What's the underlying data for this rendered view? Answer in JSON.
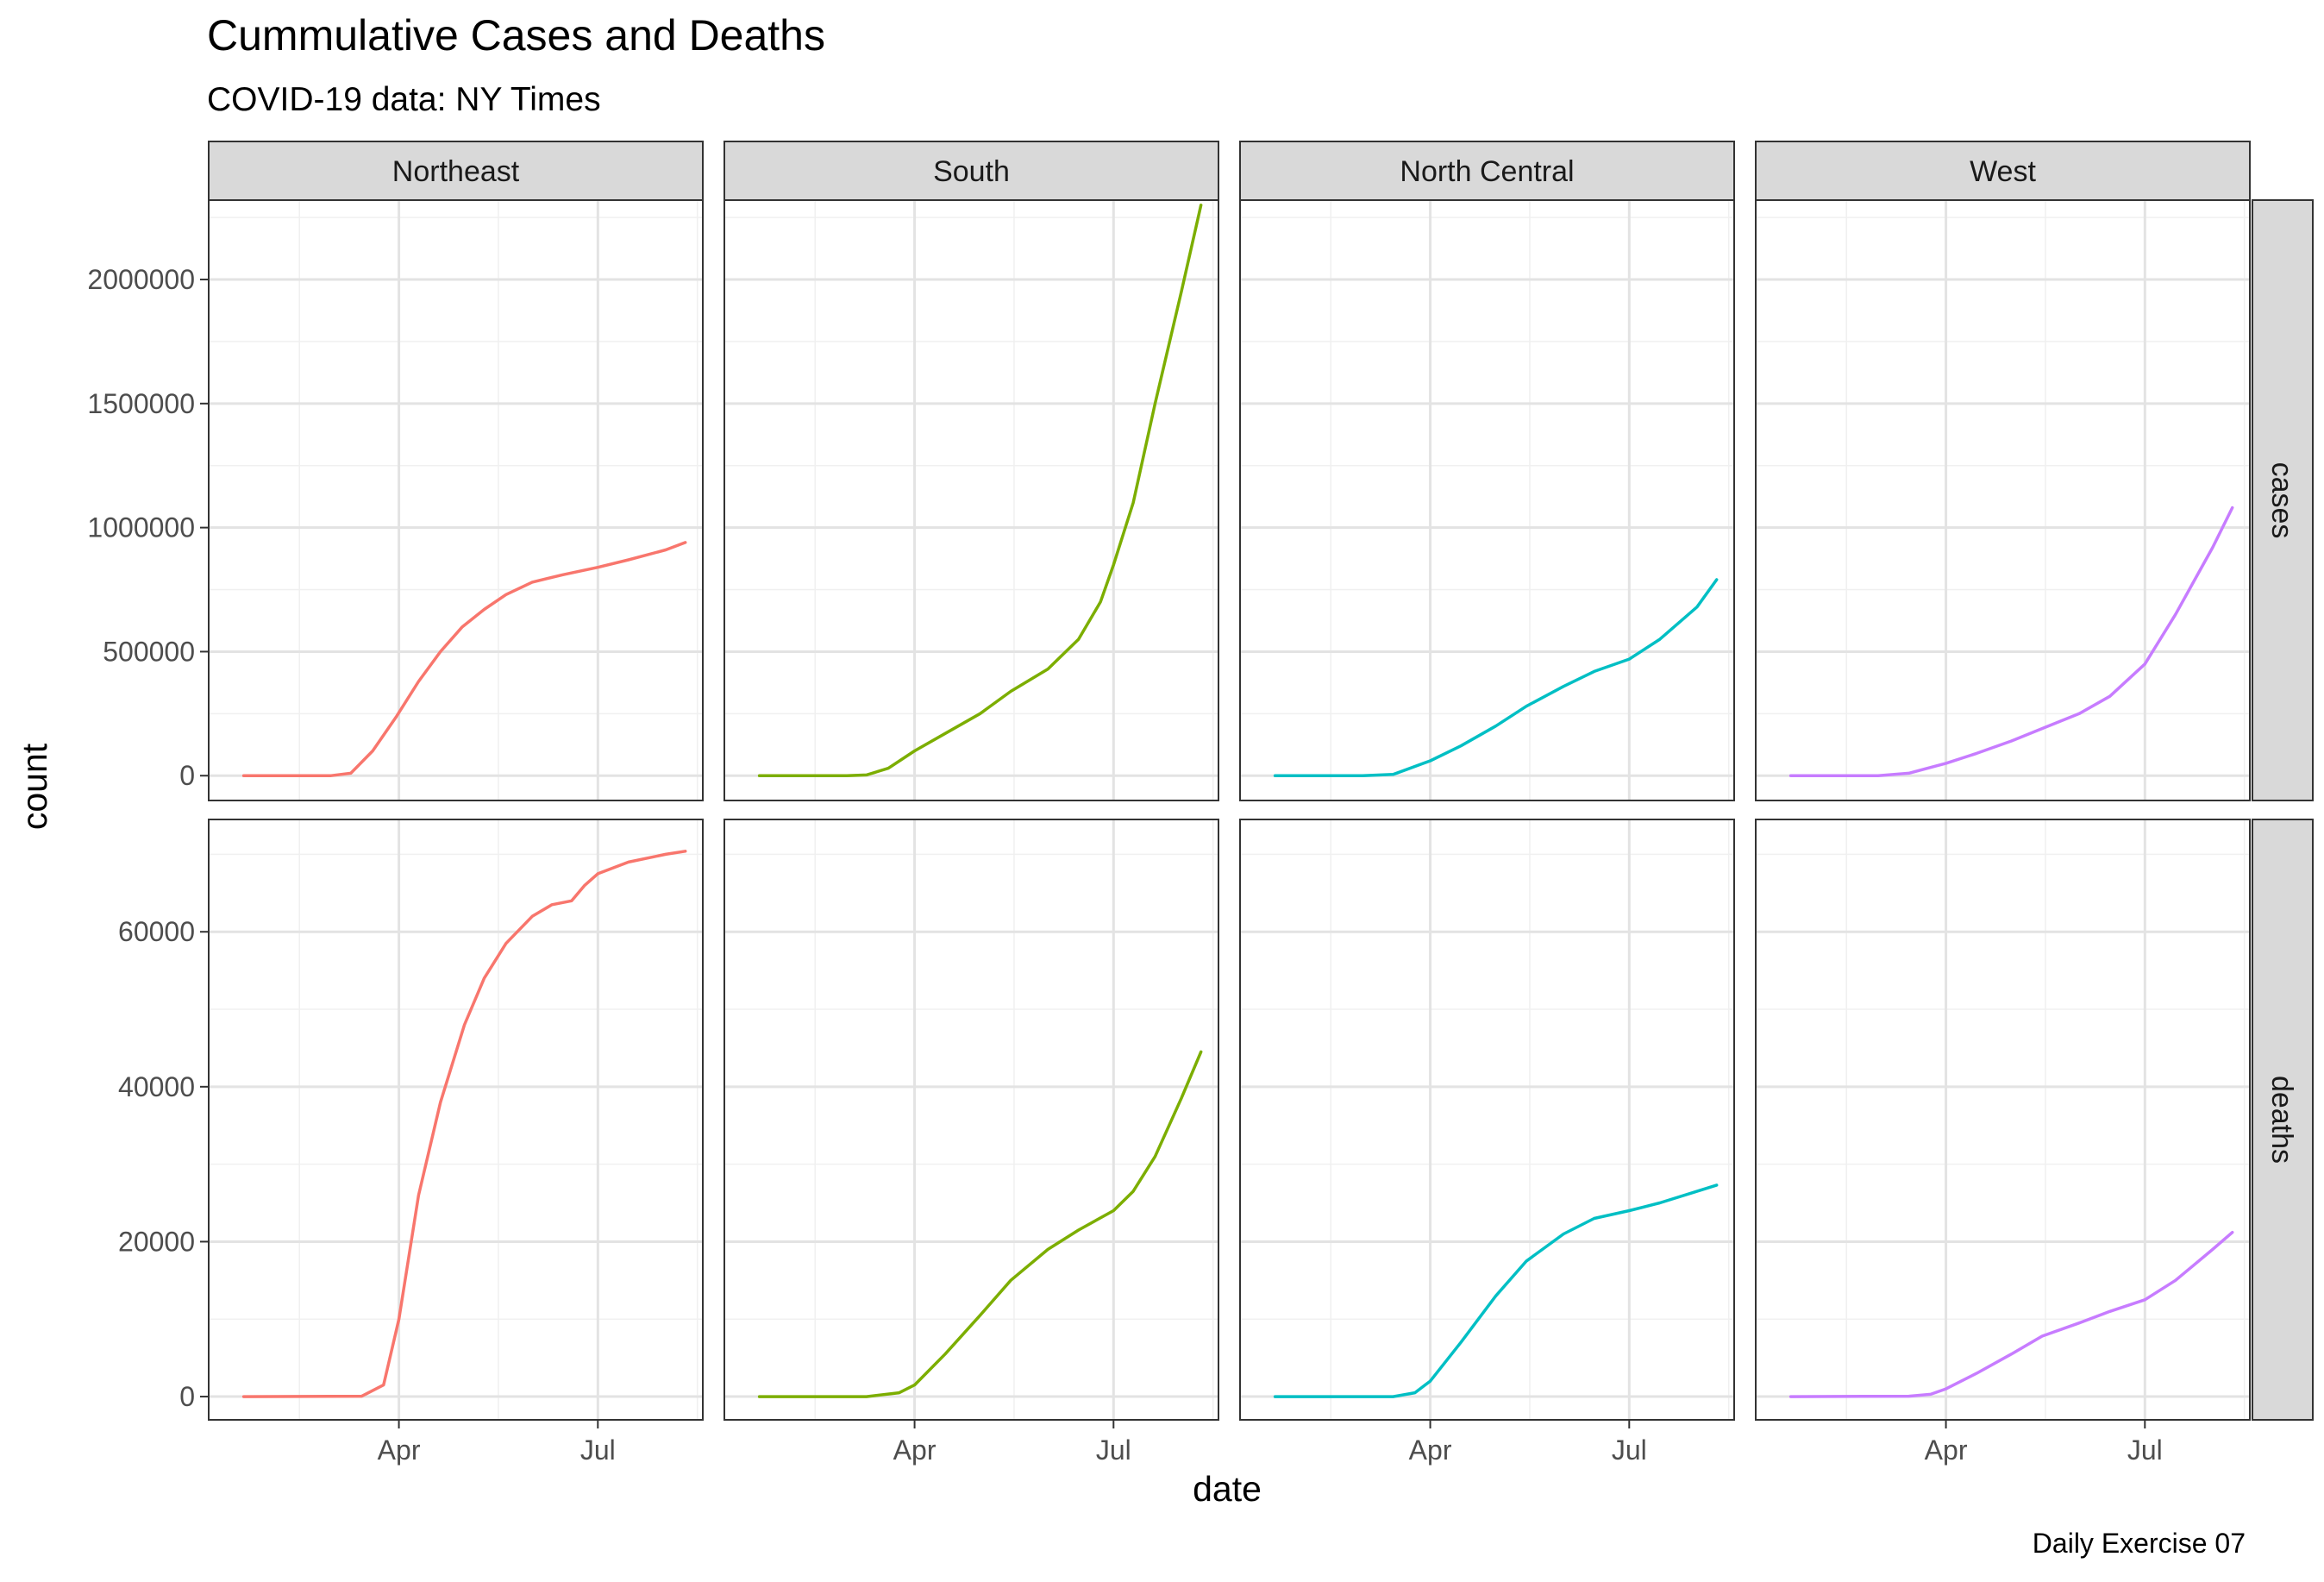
{
  "chart_data": {
    "type": "line",
    "title": "Cummulative Cases and Deaths",
    "subtitle": "COVID-19 data: NY Times",
    "caption": "Daily Exercise 07",
    "xlabel": "date",
    "ylabel": "count",
    "x_ticks": [
      "Apr",
      "Jul"
    ],
    "x_tick_dates": [
      "2020-04-01",
      "2020-07-01"
    ],
    "xlim": [
      "2020-01-05",
      "2020-08-18"
    ],
    "grid": true,
    "legend": "none",
    "facet_columns": [
      "Northeast",
      "South",
      "North Central",
      "West"
    ],
    "facet_rows": [
      {
        "label": "cases",
        "ylim": [
          -100000,
          2320000
        ],
        "y_ticks": [
          0,
          500000,
          1000000,
          1500000,
          2000000
        ],
        "y_tick_labels": [
          "0",
          "500000",
          "1000000",
          "1500000",
          "2000000"
        ]
      },
      {
        "label": "deaths",
        "ylim": [
          -3000,
          74500
        ],
        "y_ticks": [
          0,
          20000,
          40000,
          60000
        ],
        "y_tick_labels": [
          "0",
          "20000",
          "40000",
          "60000"
        ]
      }
    ],
    "colors": {
      "Northeast": "#F8766D",
      "South": "#7CAE00",
      "North Central": "#00BFC4",
      "West": "#C77CFF"
    },
    "series": [
      {
        "region": "Northeast",
        "measure": "cases",
        "x": [
          "2020-01-21",
          "2020-03-01",
          "2020-03-10",
          "2020-03-20",
          "2020-03-31",
          "2020-04-10",
          "2020-04-20",
          "2020-04-30",
          "2020-05-10",
          "2020-05-20",
          "2020-06-01",
          "2020-06-15",
          "2020-07-01",
          "2020-07-15",
          "2020-08-01",
          "2020-08-10"
        ],
        "y": [
          0,
          100,
          10000,
          100000,
          240000,
          380000,
          500000,
          600000,
          670000,
          730000,
          780000,
          810000,
          840000,
          870000,
          910000,
          940000
        ]
      },
      {
        "region": "South",
        "measure": "cases",
        "x": [
          "2020-01-21",
          "2020-03-01",
          "2020-03-10",
          "2020-03-20",
          "2020-04-01",
          "2020-04-15",
          "2020-05-01",
          "2020-05-15",
          "2020-06-01",
          "2020-06-15",
          "2020-06-25",
          "2020-07-01",
          "2020-07-10",
          "2020-07-20",
          "2020-08-01",
          "2020-08-10"
        ],
        "y": [
          0,
          0,
          3000,
          30000,
          100000,
          170000,
          250000,
          340000,
          430000,
          550000,
          700000,
          850000,
          1100000,
          1500000,
          1950000,
          2300000
        ]
      },
      {
        "region": "North Central",
        "measure": "cases",
        "x": [
          "2020-01-21",
          "2020-03-01",
          "2020-03-15",
          "2020-04-01",
          "2020-04-15",
          "2020-05-01",
          "2020-05-15",
          "2020-06-01",
          "2020-06-15",
          "2020-07-01",
          "2020-07-15",
          "2020-08-01",
          "2020-08-10"
        ],
        "y": [
          0,
          0,
          5000,
          60000,
          120000,
          200000,
          280000,
          360000,
          420000,
          470000,
          550000,
          680000,
          790000
        ]
      },
      {
        "region": "West",
        "measure": "cases",
        "x": [
          "2020-01-21",
          "2020-03-01",
          "2020-03-15",
          "2020-04-01",
          "2020-04-15",
          "2020-05-01",
          "2020-05-15",
          "2020-06-01",
          "2020-06-15",
          "2020-07-01",
          "2020-07-15",
          "2020-08-01",
          "2020-08-10"
        ],
        "y": [
          0,
          0,
          10000,
          50000,
          90000,
          140000,
          190000,
          250000,
          320000,
          450000,
          650000,
          920000,
          1080000
        ]
      },
      {
        "region": "Northeast",
        "measure": "deaths",
        "x": [
          "2020-01-21",
          "2020-03-15",
          "2020-03-25",
          "2020-04-01",
          "2020-04-10",
          "2020-04-20",
          "2020-05-01",
          "2020-05-10",
          "2020-05-20",
          "2020-06-01",
          "2020-06-10",
          "2020-06-19",
          "2020-06-25",
          "2020-07-01",
          "2020-07-15",
          "2020-08-01",
          "2020-08-10"
        ],
        "y": [
          0,
          50,
          1500,
          10000,
          26000,
          38000,
          48000,
          54000,
          58500,
          62000,
          63500,
          64000,
          66000,
          67500,
          69000,
          70000,
          70400
        ]
      },
      {
        "region": "South",
        "measure": "deaths",
        "x": [
          "2020-01-21",
          "2020-03-10",
          "2020-03-25",
          "2020-04-01",
          "2020-04-15",
          "2020-05-01",
          "2020-05-15",
          "2020-06-01",
          "2020-06-15",
          "2020-07-01",
          "2020-07-10",
          "2020-07-20",
          "2020-08-01",
          "2020-08-10"
        ],
        "y": [
          0,
          0,
          500,
          1500,
          5500,
          10500,
          15000,
          19000,
          21500,
          24000,
          26500,
          31000,
          38500,
          44500
        ]
      },
      {
        "region": "North Central",
        "measure": "deaths",
        "x": [
          "2020-01-21",
          "2020-03-15",
          "2020-03-25",
          "2020-04-01",
          "2020-04-15",
          "2020-05-01",
          "2020-05-15",
          "2020-06-01",
          "2020-06-15",
          "2020-07-01",
          "2020-07-15",
          "2020-08-01",
          "2020-08-10"
        ],
        "y": [
          0,
          0,
          500,
          2000,
          7000,
          13000,
          17500,
          21000,
          23000,
          24000,
          25000,
          26500,
          27300
        ]
      },
      {
        "region": "West",
        "measure": "deaths",
        "x": [
          "2020-01-21",
          "2020-03-15",
          "2020-03-25",
          "2020-04-01",
          "2020-04-15",
          "2020-05-01",
          "2020-05-15",
          "2020-06-01",
          "2020-06-15",
          "2020-07-01",
          "2020-07-15",
          "2020-08-01",
          "2020-08-10"
        ],
        "y": [
          0,
          50,
          300,
          1000,
          3000,
          5500,
          7800,
          9500,
          11000,
          12500,
          15000,
          19000,
          21200
        ]
      }
    ]
  }
}
